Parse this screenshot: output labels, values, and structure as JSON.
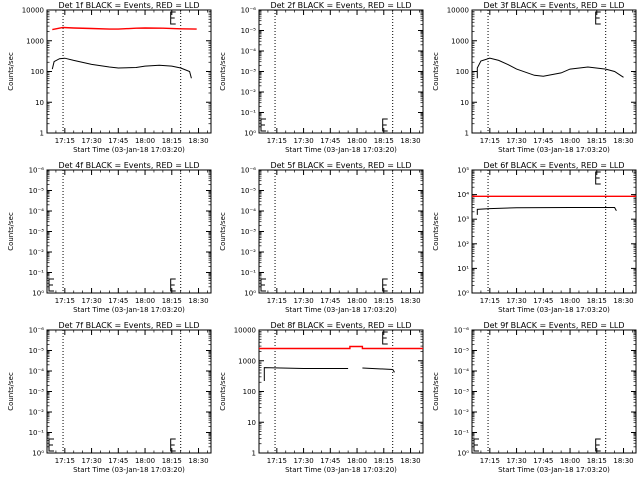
{
  "chart_data": [
    {
      "type": "line",
      "title": "Det 1f BLACK = Events, RED = LLD",
      "xlabel": "Start Time (03-Jan-18 17:03:20)",
      "ylabel": "Counts/sec",
      "yscale": "log",
      "xlim": [
        "17:05",
        "18:37"
      ],
      "ylim": [
        1,
        10000
      ],
      "x_ticks": [
        "17:15",
        "17:30",
        "17:45",
        "18:00",
        "18:15",
        "18:30"
      ],
      "y_ticks": [
        "1",
        "10",
        "100",
        "1000",
        "10000"
      ],
      "vlines": [
        "17:14",
        "18:20"
      ],
      "series": [
        {
          "color": "#ff0000",
          "x": [
            "17:08",
            "17:14",
            "17:20",
            "17:30",
            "17:40",
            "17:45",
            "17:55",
            "18:00",
            "18:10",
            "18:20",
            "18:29"
          ],
          "y": [
            2300,
            2700,
            2600,
            2500,
            2400,
            2400,
            2550,
            2600,
            2550,
            2450,
            2400
          ]
        },
        {
          "color": "#000000",
          "x": [
            "17:08",
            "17:09",
            "17:12",
            "17:15",
            "17:20",
            "17:30",
            "17:40",
            "17:45",
            "17:55",
            "18:00",
            "18:08",
            "18:15",
            "18:20",
            "18:25",
            "18:26"
          ],
          "y": [
            120,
            210,
            260,
            270,
            230,
            170,
            140,
            130,
            135,
            150,
            160,
            150,
            130,
            100,
            60
          ]
        }
      ]
    },
    {
      "type": "line",
      "title": "Det 2f BLACK = Events, RED = LLD",
      "xlabel": "Start Time (03-Jan-18 17:03:20)",
      "ylabel": "Counts/sec",
      "yscale": "log",
      "xlim": [
        "17:05",
        "18:37"
      ],
      "ylim": [
        1e-06,
        1
      ],
      "x_ticks": [
        "17:15",
        "17:30",
        "17:45",
        "18:00",
        "18:15",
        "18:30"
      ],
      "y_ticks": [
        "10⁰",
        "10⁻¹",
        "10⁻²",
        "10⁻³",
        "10⁻⁴",
        "10⁻⁵",
        "10⁻⁶"
      ],
      "vlines": [
        "17:14",
        "18:20"
      ],
      "series": []
    },
    {
      "type": "line",
      "title": "Det 3f BLACK = Events, RED = LLD",
      "xlabel": "Start Time (03-Jan-18 17:03:20)",
      "ylabel": "Counts/sec",
      "yscale": "log",
      "xlim": [
        "17:05",
        "18:37"
      ],
      "ylim": [
        1,
        10000
      ],
      "x_ticks": [
        "17:15",
        "17:30",
        "17:45",
        "18:00",
        "18:15",
        "18:30"
      ],
      "y_ticks": [
        "1",
        "10",
        "100",
        "1000",
        "10000"
      ],
      "vlines": [
        "17:14",
        "18:20"
      ],
      "series": [
        {
          "color": "#000000",
          "x": [
            "17:08",
            "17:08",
            "17:10",
            "17:15",
            "17:20",
            "17:25",
            "17:30",
            "17:40",
            "17:45",
            "17:55",
            "18:00",
            "18:10",
            "18:20",
            "18:25",
            "18:30"
          ],
          "y": [
            60,
            130,
            220,
            270,
            230,
            170,
            120,
            75,
            70,
            90,
            120,
            140,
            120,
            100,
            65
          ]
        }
      ]
    },
    {
      "type": "line",
      "title": "Det 4f BLACK = Events, RED = LLD",
      "xlabel": "Start Time (03-Jan-18 17:03:20)",
      "ylabel": "Counts/sec",
      "yscale": "log",
      "xlim": [
        "17:05",
        "18:37"
      ],
      "ylim": [
        1e-06,
        1
      ],
      "x_ticks": [
        "17:15",
        "17:30",
        "17:45",
        "18:00",
        "18:15",
        "18:30"
      ],
      "y_ticks": [
        "10⁰",
        "10⁻¹",
        "10⁻²",
        "10⁻³",
        "10⁻⁴",
        "10⁻⁵",
        "10⁻⁶"
      ],
      "vlines": [
        "17:14",
        "18:20"
      ],
      "series": []
    },
    {
      "type": "line",
      "title": "Det 5f BLACK = Events, RED = LLD",
      "xlabel": "Start Time (03-Jan-18 17:03:20)",
      "ylabel": "Counts/sec",
      "yscale": "log",
      "xlim": [
        "17:05",
        "18:37"
      ],
      "ylim": [
        1e-06,
        1
      ],
      "x_ticks": [
        "17:15",
        "17:30",
        "17:45",
        "18:00",
        "18:15",
        "18:30"
      ],
      "y_ticks": [
        "10⁰",
        "10⁻¹",
        "10⁻²",
        "10⁻³",
        "10⁻⁴",
        "10⁻⁵",
        "10⁻⁶"
      ],
      "vlines": [
        "17:14",
        "18:20"
      ],
      "series": []
    },
    {
      "type": "line",
      "title": "Det 6f BLACK = Events, RED = LLD",
      "xlabel": "Start Time (03-Jan-18 17:03:20)",
      "ylabel": "Counts/sec",
      "yscale": "log",
      "xlim": [
        "17:05",
        "18:37"
      ],
      "ylim": [
        1,
        100000
      ],
      "x_ticks": [
        "17:15",
        "17:30",
        "17:45",
        "18:00",
        "18:15",
        "18:30"
      ],
      "y_ticks": [
        "10⁰",
        "10¹",
        "10²",
        "10³",
        "10⁴",
        "10⁵"
      ],
      "vlines": [
        "17:14",
        "18:20"
      ],
      "series": [
        {
          "color": "#ff0000",
          "x": [
            "17:05",
            "18:37"
          ],
          "y": [
            8500,
            8500
          ]
        },
        {
          "color": "#000000",
          "x": [
            "17:08",
            "17:08",
            "17:15",
            "17:30",
            "17:45",
            "18:00",
            "18:15",
            "18:25",
            "18:26"
          ],
          "y": [
            1500,
            2500,
            2700,
            2900,
            2950,
            3000,
            3000,
            3000,
            2200
          ]
        }
      ]
    },
    {
      "type": "line",
      "title": "Det 7f BLACK = Events, RED = LLD",
      "xlabel": "Start Time (03-Jan-18 17:03:20)",
      "ylabel": "Counts/sec",
      "yscale": "log",
      "xlim": [
        "17:05",
        "18:37"
      ],
      "ylim": [
        1e-06,
        1
      ],
      "x_ticks": [
        "17:15",
        "17:30",
        "17:45",
        "18:00",
        "18:15",
        "18:30"
      ],
      "y_ticks": [
        "10⁰",
        "10⁻¹",
        "10⁻²",
        "10⁻³",
        "10⁻⁴",
        "10⁻⁵",
        "10⁻⁶"
      ],
      "vlines": [
        "17:14",
        "18:20"
      ],
      "series": []
    },
    {
      "type": "line",
      "title": "Det 8f BLACK = Events, RED = LLD",
      "xlabel": "Start Time (03-Jan-18 17:03:20)",
      "ylabel": "Counts/sec",
      "yscale": "log",
      "xlim": [
        "17:05",
        "18:37"
      ],
      "ylim": [
        1,
        10000
      ],
      "x_ticks": [
        "17:15",
        "17:30",
        "17:45",
        "18:00",
        "18:15",
        "18:30"
      ],
      "y_ticks": [
        "1",
        "10",
        "100",
        "1000",
        "10000"
      ],
      "vlines": [
        "17:14",
        "18:20"
      ],
      "series": [
        {
          "color": "#ff0000",
          "x": [
            "17:05",
            "17:56",
            "17:56",
            "18:03",
            "18:03",
            "18:37"
          ],
          "y": [
            2500,
            2500,
            2900,
            2900,
            2500,
            2500
          ]
        },
        {
          "color": "#000000",
          "x": [
            "17:08",
            "17:08",
            "17:30",
            "17:55"
          ],
          "y": [
            220,
            600,
            560,
            560
          ]
        },
        {
          "color": "#000000",
          "x": [
            "18:03",
            "18:20",
            "18:21"
          ],
          "y": [
            580,
            520,
            420
          ]
        }
      ]
    },
    {
      "type": "line",
      "title": "Det 9f BLACK = Events, RED = LLD",
      "xlabel": "Start Time (03-Jan-18 17:03:20)",
      "ylabel": "Counts/sec",
      "yscale": "log",
      "xlim": [
        "17:05",
        "18:37"
      ],
      "ylim": [
        1e-06,
        1
      ],
      "x_ticks": [
        "17:15",
        "17:30",
        "17:45",
        "18:00",
        "18:15",
        "18:30"
      ],
      "y_ticks": [
        "10⁰",
        "10⁻¹",
        "10⁻²",
        "10⁻³",
        "10⁻⁴",
        "10⁻⁵",
        "10⁻⁶"
      ],
      "vlines": [
        "17:14",
        "18:20"
      ],
      "series": []
    }
  ]
}
